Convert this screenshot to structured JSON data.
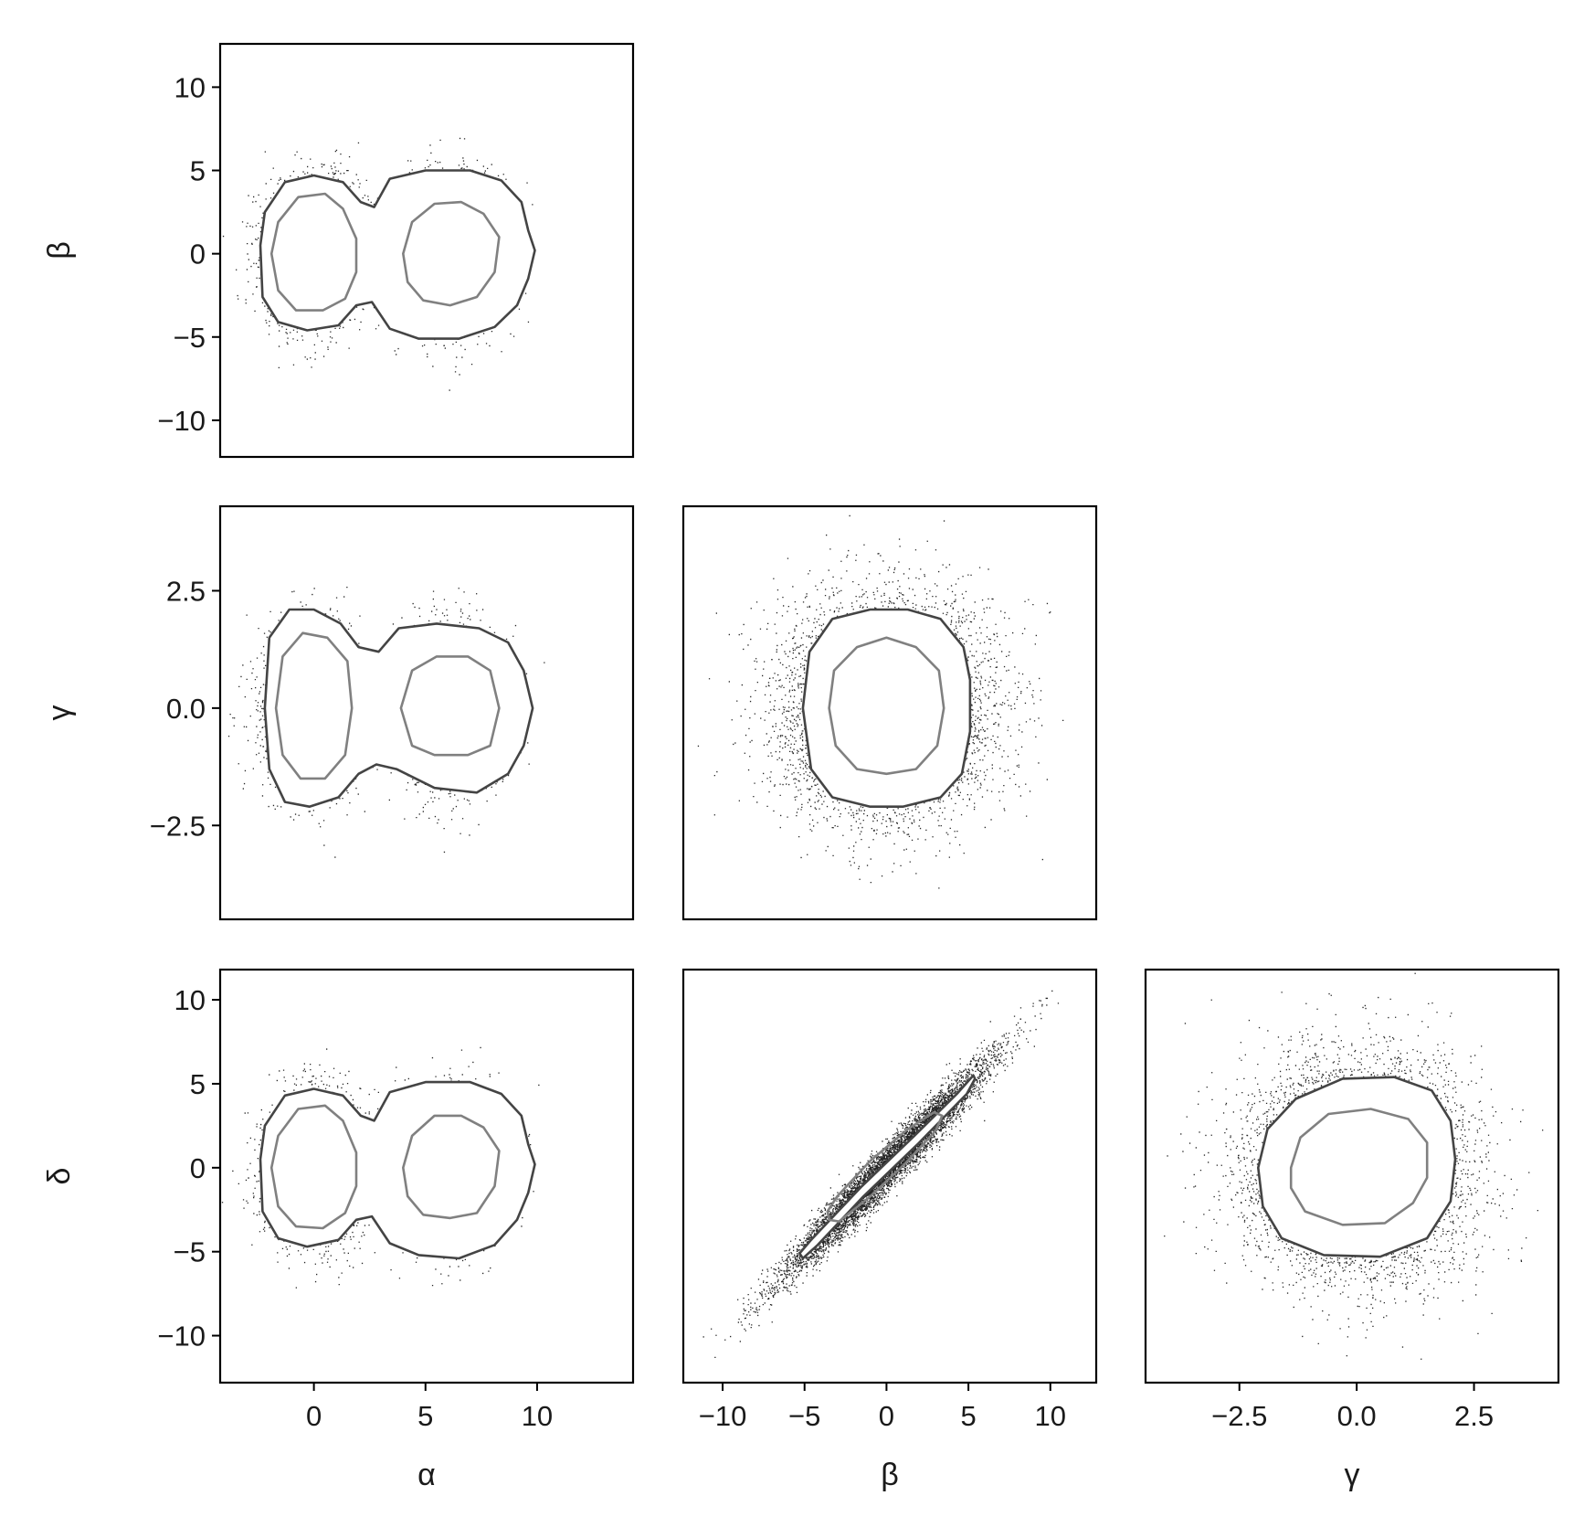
{
  "chart_data": {
    "type": "scatter",
    "layout": "corner-plot",
    "title": "",
    "parameters": [
      "α",
      "β",
      "γ",
      "δ"
    ],
    "contour_levels": [
      {
        "name": "inner",
        "color": "#808080"
      },
      {
        "name": "outer",
        "color": "#444444"
      }
    ],
    "colors": {
      "points": "#000000",
      "inner_contour": "#808080",
      "outer_contour": "#444444",
      "frame": "#000000"
    },
    "grid": false,
    "panels": [
      {
        "id": "alpha-beta",
        "row": 0,
        "col": 0,
        "xparam": "α",
        "yparam": "β",
        "xlim": [
          -4.2,
          14.3
        ],
        "ylim": [
          -12.2,
          12.6
        ],
        "xticks": [],
        "xticklabels": [],
        "yticks": [
          -10,
          -5,
          0,
          5,
          10
        ],
        "yticklabels": [
          "−10",
          "−5",
          "0",
          "5",
          "10"
        ],
        "xlabel": "",
        "ylabel": "β",
        "distribution": {
          "kind": "two-mode",
          "modes": [
            {
              "x": 0,
              "y": 0,
              "sx": 1.1,
              "sy": 2.1
            },
            {
              "x": 6,
              "y": 0,
              "sx": 1.2,
              "sy": 2.1
            }
          ]
        },
        "outer_contour": [
          [
            -2.4,
            0.5
          ],
          [
            -2.2,
            2.5
          ],
          [
            -1.3,
            4.3
          ],
          [
            0,
            4.7
          ],
          [
            1.3,
            4.3
          ],
          [
            2.1,
            3.1
          ],
          [
            2.7,
            2.8
          ],
          [
            3.4,
            4.5
          ],
          [
            5,
            5
          ],
          [
            7,
            5
          ],
          [
            8.4,
            4.4
          ],
          [
            9.3,
            3.1
          ],
          [
            9.6,
            1.4
          ],
          [
            9.9,
            0.2
          ],
          [
            9.6,
            -1.5
          ],
          [
            9.1,
            -3.1
          ],
          [
            8.1,
            -4.4
          ],
          [
            6.5,
            -5.1
          ],
          [
            4.7,
            -5.1
          ],
          [
            3.4,
            -4.5
          ],
          [
            2.6,
            -2.9
          ],
          [
            1.9,
            -3.1
          ],
          [
            1.1,
            -4.3
          ],
          [
            -0.3,
            -4.6
          ],
          [
            -1.6,
            -4.1
          ],
          [
            -2.3,
            -2.6
          ]
        ],
        "inner_contours": [
          [
            [
              -1.9,
              0
            ],
            [
              -1.6,
              1.9
            ],
            [
              -0.7,
              3.4
            ],
            [
              0.5,
              3.6
            ],
            [
              1.3,
              2.7
            ],
            [
              1.9,
              0.9
            ],
            [
              1.9,
              -1.1
            ],
            [
              1.4,
              -2.7
            ],
            [
              0.4,
              -3.4
            ],
            [
              -0.8,
              -3.4
            ],
            [
              -1.6,
              -2.2
            ]
          ],
          [
            [
              4,
              0
            ],
            [
              4.4,
              1.9
            ],
            [
              5.4,
              3
            ],
            [
              6.6,
              3.1
            ],
            [
              7.6,
              2.4
            ],
            [
              8.3,
              1
            ],
            [
              8.1,
              -1.1
            ],
            [
              7.3,
              -2.6
            ],
            [
              6.1,
              -3.1
            ],
            [
              4.9,
              -2.8
            ],
            [
              4.2,
              -1.7
            ]
          ]
        ]
      },
      {
        "id": "alpha-gamma",
        "row": 1,
        "col": 0,
        "xparam": "α",
        "yparam": "γ",
        "xlim": [
          -4.2,
          14.3
        ],
        "ylim": [
          -4.5,
          4.3
        ],
        "xticks": [],
        "xticklabels": [],
        "yticks": [
          -2.5,
          0,
          2.5
        ],
        "yticklabels": [
          "−2.5",
          "0.0",
          "2.5"
        ],
        "xlabel": "",
        "ylabel": "γ",
        "distribution": {
          "kind": "two-mode",
          "modes": [
            {
              "x": 0,
              "y": 0,
              "sx": 1.1,
              "sy": 0.8
            },
            {
              "x": 6,
              "y": 0,
              "sx": 1.2,
              "sy": 0.8
            }
          ]
        },
        "outer_contour": [
          [
            -2.2,
            0
          ],
          [
            -2,
            1.5
          ],
          [
            -1.1,
            2.1
          ],
          [
            0,
            2.1
          ],
          [
            1.2,
            1.8
          ],
          [
            2,
            1.3
          ],
          [
            2.9,
            1.2
          ],
          [
            3.8,
            1.7
          ],
          [
            5.5,
            1.8
          ],
          [
            7.4,
            1.7
          ],
          [
            8.7,
            1.4
          ],
          [
            9.4,
            0.8
          ],
          [
            9.8,
            0
          ],
          [
            9.4,
            -0.8
          ],
          [
            8.7,
            -1.4
          ],
          [
            7.3,
            -1.8
          ],
          [
            5.4,
            -1.7
          ],
          [
            3.7,
            -1.3
          ],
          [
            2.8,
            -1.2
          ],
          [
            2,
            -1.4
          ],
          [
            1.1,
            -1.9
          ],
          [
            -0.2,
            -2.1
          ],
          [
            -1.3,
            -2
          ],
          [
            -2,
            -1.3
          ]
        ],
        "inner_contours": [
          [
            [
              -1.7,
              0
            ],
            [
              -1.4,
              1.1
            ],
            [
              -0.5,
              1.6
            ],
            [
              0.6,
              1.5
            ],
            [
              1.5,
              1
            ],
            [
              1.7,
              0
            ],
            [
              1.4,
              -1
            ],
            [
              0.5,
              -1.5
            ],
            [
              -0.6,
              -1.5
            ],
            [
              -1.4,
              -1
            ]
          ],
          [
            [
              3.9,
              0
            ],
            [
              4.4,
              0.8
            ],
            [
              5.5,
              1.1
            ],
            [
              6.9,
              1.1
            ],
            [
              7.9,
              0.8
            ],
            [
              8.3,
              0
            ],
            [
              7.9,
              -0.8
            ],
            [
              6.9,
              -1
            ],
            [
              5.4,
              -1
            ],
            [
              4.4,
              -0.8
            ]
          ]
        ]
      },
      {
        "id": "beta-gamma",
        "row": 1,
        "col": 1,
        "xparam": "β",
        "yparam": "γ",
        "xlim": [
          -12.4,
          12.8
        ],
        "ylim": [
          -4.5,
          4.3
        ],
        "xticks": [],
        "xticklabels": [],
        "yticks": [],
        "yticklabels": [],
        "xlabel": "",
        "ylabel": "",
        "distribution": {
          "kind": "single",
          "modes": [
            {
              "x": 0,
              "y": 0,
              "sx": 3.2,
              "sy": 1.15
            }
          ]
        },
        "outer_contour": [
          [
            -5.1,
            0
          ],
          [
            -4.7,
            1.2
          ],
          [
            -3.3,
            1.9
          ],
          [
            -1,
            2.1
          ],
          [
            1.3,
            2.1
          ],
          [
            3.3,
            1.9
          ],
          [
            4.7,
            1.3
          ],
          [
            5.1,
            0.6
          ],
          [
            5.1,
            -0.5
          ],
          [
            4.6,
            -1.4
          ],
          [
            3.3,
            -1.9
          ],
          [
            1,
            -2.1
          ],
          [
            -1,
            -2.1
          ],
          [
            -3.3,
            -1.9
          ],
          [
            -4.6,
            -1.3
          ]
        ],
        "inner_contours": [
          [
            [
              -3.5,
              0
            ],
            [
              -3.2,
              0.8
            ],
            [
              -1.8,
              1.3
            ],
            [
              0,
              1.5
            ],
            [
              1.8,
              1.3
            ],
            [
              3.2,
              0.8
            ],
            [
              3.5,
              0
            ],
            [
              3.1,
              -0.8
            ],
            [
              1.8,
              -1.3
            ],
            [
              0,
              -1.4
            ],
            [
              -1.8,
              -1.3
            ],
            [
              -3.1,
              -0.8
            ]
          ]
        ]
      },
      {
        "id": "alpha-delta",
        "row": 2,
        "col": 0,
        "xparam": "α",
        "yparam": "δ",
        "xlim": [
          -4.2,
          14.3
        ],
        "ylim": [
          -12.8,
          11.8
        ],
        "xticks": [
          0,
          5,
          10
        ],
        "xticklabels": [
          "0",
          "5",
          "10"
        ],
        "yticks": [
          -10,
          -5,
          0,
          5,
          10
        ],
        "yticklabels": [
          "−10",
          "−5",
          "0",
          "5",
          "10"
        ],
        "xlabel": "α",
        "ylabel": "δ",
        "distribution": {
          "kind": "two-mode",
          "modes": [
            {
              "x": 0,
              "y": 0,
              "sx": 1.1,
              "sy": 2.1
            },
            {
              "x": 6,
              "y": 0,
              "sx": 1.2,
              "sy": 2.1
            }
          ]
        },
        "outer_contour": [
          [
            -2.4,
            0.5
          ],
          [
            -2.2,
            2.5
          ],
          [
            -1.3,
            4.3
          ],
          [
            0,
            4.7
          ],
          [
            1.3,
            4.3
          ],
          [
            2.1,
            3.1
          ],
          [
            2.7,
            2.8
          ],
          [
            3.4,
            4.5
          ],
          [
            5,
            5.1
          ],
          [
            7,
            5.1
          ],
          [
            8.4,
            4.4
          ],
          [
            9.3,
            3.1
          ],
          [
            9.6,
            1.4
          ],
          [
            9.9,
            0.2
          ],
          [
            9.6,
            -1.5
          ],
          [
            9.1,
            -3.1
          ],
          [
            8.1,
            -4.6
          ],
          [
            6.5,
            -5.4
          ],
          [
            4.7,
            -5.2
          ],
          [
            3.4,
            -4.5
          ],
          [
            2.6,
            -2.9
          ],
          [
            1.9,
            -3.1
          ],
          [
            1.1,
            -4.3
          ],
          [
            -0.3,
            -4.7
          ],
          [
            -1.6,
            -4.2
          ],
          [
            -2.3,
            -2.6
          ]
        ],
        "inner_contours": [
          [
            [
              -1.9,
              0
            ],
            [
              -1.6,
              1.9
            ],
            [
              -0.7,
              3.5
            ],
            [
              0.5,
              3.7
            ],
            [
              1.3,
              2.8
            ],
            [
              1.9,
              0.9
            ],
            [
              1.9,
              -1.1
            ],
            [
              1.4,
              -2.7
            ],
            [
              0.4,
              -3.6
            ],
            [
              -0.8,
              -3.5
            ],
            [
              -1.6,
              -2.3
            ]
          ],
          [
            [
              4,
              0
            ],
            [
              4.4,
              1.9
            ],
            [
              5.4,
              3.1
            ],
            [
              6.6,
              3.1
            ],
            [
              7.6,
              2.4
            ],
            [
              8.3,
              1
            ],
            [
              8.1,
              -1.1
            ],
            [
              7.3,
              -2.7
            ],
            [
              6.1,
              -3
            ],
            [
              4.9,
              -2.8
            ],
            [
              4.2,
              -1.7
            ]
          ]
        ]
      },
      {
        "id": "beta-delta",
        "row": 2,
        "col": 1,
        "xparam": "β",
        "yparam": "δ",
        "xlim": [
          -12.4,
          12.8
        ],
        "ylim": [
          -12.8,
          11.8
        ],
        "xticks": [
          -10,
          -5,
          0,
          5,
          10
        ],
        "xticklabels": [
          "−10",
          "−5",
          "0",
          "5",
          "10"
        ],
        "yticks": [],
        "yticklabels": [],
        "xlabel": "β",
        "ylabel": "",
        "distribution": {
          "kind": "correlated",
          "modes": [
            {
              "x": 0,
              "y": 0,
              "sx": 3.2,
              "sy": 0.7
            }
          ]
        },
        "outer_contour": [
          [
            -5.3,
            -5.1
          ],
          [
            -4.6,
            -4.3
          ],
          [
            -1.5,
            -1.1
          ],
          [
            1.7,
            1.9
          ],
          [
            4.3,
            4.4
          ],
          [
            5.3,
            5.5
          ],
          [
            5.4,
            5.3
          ],
          [
            4.9,
            4.4
          ],
          [
            1.9,
            1.4
          ],
          [
            -1.4,
            -1.7
          ],
          [
            -4.2,
            -4.6
          ],
          [
            -5.1,
            -5.4
          ]
        ],
        "inner_contours": [
          [
            [
              -3.6,
              -2.6
            ],
            [
              -3,
              -1.7
            ],
            [
              -1,
              0.4
            ],
            [
              1.3,
              2.3
            ],
            [
              2.9,
              3.3
            ],
            [
              3.4,
              3.1
            ],
            [
              3,
              2.2
            ],
            [
              1.1,
              0.2
            ],
            [
              -1.1,
              -1.8
            ],
            [
              -2.9,
              -3.2
            ],
            [
              -3.5,
              -3.1
            ]
          ]
        ]
      },
      {
        "id": "gamma-delta",
        "row": 2,
        "col": 2,
        "xparam": "γ",
        "yparam": "δ",
        "xlim": [
          -4.5,
          4.3
        ],
        "ylim": [
          -12.8,
          11.8
        ],
        "xticks": [
          -2.5,
          0,
          2.5
        ],
        "xticklabels": [
          "−2.5",
          "0.0",
          "2.5"
        ],
        "yticks": [],
        "yticklabels": [],
        "xlabel": "γ",
        "ylabel": "",
        "distribution": {
          "kind": "single",
          "modes": [
            {
              "x": 0,
              "y": 0,
              "sx": 1.15,
              "sy": 3.2
            }
          ]
        },
        "outer_contour": [
          [
            -2.1,
            0
          ],
          [
            -1.9,
            2.3
          ],
          [
            -1.3,
            4.1
          ],
          [
            -0.3,
            5.3
          ],
          [
            0.8,
            5.4
          ],
          [
            1.6,
            4.6
          ],
          [
            2,
            2.8
          ],
          [
            2.1,
            0.5
          ],
          [
            2,
            -2
          ],
          [
            1.5,
            -4.2
          ],
          [
            0.5,
            -5.3
          ],
          [
            -0.7,
            -5.2
          ],
          [
            -1.6,
            -4.2
          ],
          [
            -2,
            -2.3
          ]
        ],
        "inner_contours": [
          [
            [
              -1.4,
              0
            ],
            [
              -1.2,
              1.8
            ],
            [
              -0.6,
              3.2
            ],
            [
              0.3,
              3.5
            ],
            [
              1.1,
              2.9
            ],
            [
              1.5,
              1.5
            ],
            [
              1.5,
              -0.6
            ],
            [
              1.2,
              -2.1
            ],
            [
              0.6,
              -3.3
            ],
            [
              -0.3,
              -3.4
            ],
            [
              -1.1,
              -2.6
            ],
            [
              -1.4,
              -1.2
            ]
          ]
        ]
      }
    ]
  }
}
